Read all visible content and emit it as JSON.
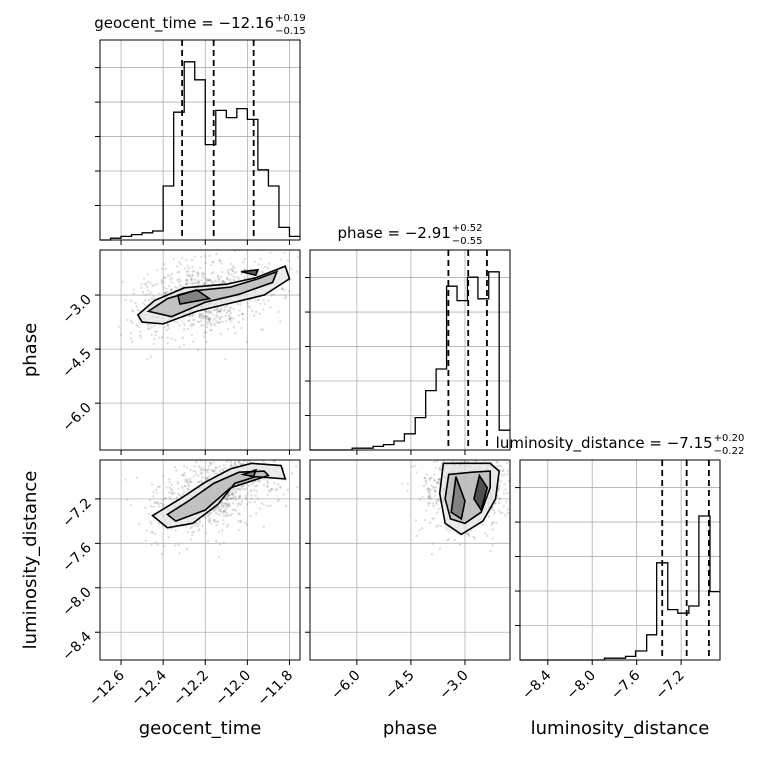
{
  "chart_data": {
    "type": "corner",
    "parameters": [
      "geocent_time",
      "phase",
      "luminosity_distance"
    ],
    "axis_labels": [
      "geocent_time",
      "phase",
      "luminosity_distance"
    ],
    "ranges": [
      [
        -12.7,
        -11.75
      ],
      [
        -7.3,
        -1.75
      ],
      [
        -8.65,
        -6.85
      ]
    ],
    "ticks": [
      {
        "values": [
          -12.6,
          -12.4,
          -12.2,
          -12.0,
          -11.8
        ],
        "labels": [
          "−12.6",
          "−12.4",
          "−12.2",
          "−12.0",
          "−11.8"
        ]
      },
      {
        "values": [
          -6.0,
          -4.5,
          -3.0
        ],
        "labels": [
          "−6.0",
          "−4.5",
          "−3.0"
        ]
      },
      {
        "values": [
          -8.4,
          -8.0,
          -7.6,
          -7.2
        ],
        "labels": [
          "−8.4",
          "−8.0",
          "−7.6",
          "−7.2"
        ]
      }
    ],
    "titles": [
      {
        "prefix": "geocent_time = −12.16",
        "sup": "+0.19",
        "sub": "−0.15"
      },
      {
        "prefix": "phase = −2.91",
        "sup": "+0.52",
        "sub": "−0.55"
      },
      {
        "prefix": "luminosity_distance = −7.15",
        "sup": "+0.20",
        "sub": "−0.22"
      }
    ],
    "medians": [
      -12.16,
      -2.91,
      -7.15
    ],
    "quantiles": [
      [
        -12.31,
        -12.16,
        -11.97
      ],
      [
        -3.46,
        -2.91,
        -2.39
      ],
      [
        -7.37,
        -7.15,
        -6.95
      ]
    ],
    "histograms": [
      {
        "edges": [
          -12.7,
          -12.65,
          -12.6,
          -12.55,
          -12.5,
          -12.45,
          -12.4,
          -12.35,
          -12.3,
          -12.25,
          -12.2,
          -12.15,
          -12.1,
          -12.05,
          -12.0,
          -11.95,
          -11.9,
          -11.85,
          -11.8,
          -11.75
        ],
        "counts": [
          0.0,
          0.01,
          0.02,
          0.03,
          0.04,
          0.05,
          0.3,
          0.71,
          0.99,
          0.89,
          0.53,
          0.72,
          0.68,
          0.73,
          0.67,
          0.39,
          0.3,
          0.07,
          0.02
        ]
      },
      {
        "edges": [
          -7.3,
          -7.01,
          -6.72,
          -6.43,
          -6.13,
          -5.84,
          -5.55,
          -5.26,
          -4.97,
          -4.68,
          -4.38,
          -4.09,
          -3.8,
          -3.51,
          -3.22,
          -2.93,
          -2.64,
          -2.34,
          -2.05,
          -1.75
        ],
        "counts": [
          0.0,
          0.0,
          0.0,
          0.0,
          0.01,
          0.01,
          0.02,
          0.03,
          0.05,
          0.09,
          0.18,
          0.33,
          0.45,
          0.91,
          0.83,
          0.96,
          0.84,
          0.99,
          0.11
        ]
      },
      {
        "edges": [
          -8.65,
          -8.56,
          -8.46,
          -8.37,
          -8.27,
          -8.18,
          -8.08,
          -7.99,
          -7.89,
          -7.8,
          -7.7,
          -7.61,
          -7.51,
          -7.42,
          -7.32,
          -7.23,
          -7.13,
          -7.04,
          -6.94,
          -6.85
        ],
        "counts": [
          0.0,
          0.0,
          0.0,
          0.0,
          0.0,
          0.0,
          0.0,
          0.0,
          0.01,
          0.01,
          0.02,
          0.05,
          0.14,
          0.54,
          0.28,
          0.26,
          0.3,
          0.8,
          0.38
        ]
      }
    ],
    "pairs": [
      {
        "x": "geocent_time",
        "y": "phase",
        "contour_levels": [
          [
            [
              -12.52,
              -3.55
            ],
            [
              -12.44,
              -3.15
            ],
            [
              -12.3,
              -2.8
            ],
            [
              -12.1,
              -2.7
            ],
            [
              -11.96,
              -2.52
            ],
            [
              -11.82,
              -2.2
            ],
            [
              -11.8,
              -2.55
            ],
            [
              -11.92,
              -3.0
            ],
            [
              -12.12,
              -3.28
            ],
            [
              -12.24,
              -3.45
            ],
            [
              -12.4,
              -3.8
            ],
            [
              -12.5,
              -3.75
            ],
            [
              -12.52,
              -3.55
            ]
          ],
          [
            [
              -12.47,
              -3.45
            ],
            [
              -12.38,
              -3.1
            ],
            [
              -12.25,
              -2.88
            ],
            [
              -12.08,
              -2.78
            ],
            [
              -11.95,
              -2.55
            ],
            [
              -11.86,
              -2.35
            ],
            [
              -11.88,
              -2.65
            ],
            [
              -12.04,
              -2.98
            ],
            [
              -12.2,
              -3.2
            ],
            [
              -12.36,
              -3.6
            ],
            [
              -12.47,
              -3.45
            ]
          ],
          [
            [
              -12.33,
              -3.0
            ],
            [
              -12.24,
              -2.86
            ],
            [
              -12.18,
              -3.1
            ],
            [
              -12.32,
              -3.25
            ],
            [
              -12.33,
              -3.0
            ]
          ],
          [
            [
              -12.03,
              -2.35
            ],
            [
              -11.95,
              -2.3
            ],
            [
              -11.96,
              -2.45
            ],
            [
              -12.03,
              -2.35
            ]
          ]
        ]
      },
      {
        "x": "geocent_time",
        "y": "luminosity_distance",
        "contour_levels": [
          [
            [
              -12.45,
              -7.35
            ],
            [
              -12.32,
              -7.2
            ],
            [
              -12.2,
              -7.05
            ],
            [
              -12.08,
              -6.93
            ],
            [
              -11.98,
              -6.88
            ],
            [
              -11.84,
              -6.9
            ],
            [
              -11.82,
              -7.02
            ],
            [
              -11.96,
              -7.0
            ],
            [
              -12.06,
              -7.06
            ],
            [
              -12.14,
              -7.25
            ],
            [
              -12.26,
              -7.42
            ],
            [
              -12.38,
              -7.46
            ],
            [
              -12.45,
              -7.35
            ]
          ],
          [
            [
              -12.38,
              -7.34
            ],
            [
              -12.28,
              -7.22
            ],
            [
              -12.16,
              -7.06
            ],
            [
              -12.04,
              -6.96
            ],
            [
              -11.92,
              -6.95
            ],
            [
              -11.9,
              -6.99
            ],
            [
              -12.08,
              -7.1
            ],
            [
              -12.2,
              -7.3
            ],
            [
              -12.34,
              -7.4
            ],
            [
              -12.38,
              -7.34
            ]
          ],
          [
            [
              -12.02,
              -6.98
            ],
            [
              -11.96,
              -6.94
            ],
            [
              -11.97,
              -7.0
            ],
            [
              -12.02,
              -6.98
            ]
          ]
        ]
      },
      {
        "x": "phase",
        "y": "luminosity_distance",
        "contour_levels": [
          [
            [
              -3.6,
              -6.88
            ],
            [
              -3.7,
              -7.15
            ],
            [
              -3.55,
              -7.42
            ],
            [
              -3.1,
              -7.52
            ],
            [
              -2.5,
              -7.4
            ],
            [
              -2.15,
              -7.2
            ],
            [
              -2.05,
              -6.95
            ],
            [
              -2.3,
              -6.88
            ],
            [
              -2.8,
              -6.88
            ],
            [
              -3.3,
              -6.88
            ],
            [
              -3.6,
              -6.88
            ]
          ],
          [
            [
              -3.45,
              -6.98
            ],
            [
              -3.55,
              -7.2
            ],
            [
              -3.4,
              -7.38
            ],
            [
              -3.0,
              -7.42
            ],
            [
              -2.55,
              -7.32
            ],
            [
              -2.3,
              -7.1
            ],
            [
              -2.3,
              -6.95
            ],
            [
              -2.8,
              -6.96
            ],
            [
              -3.45,
              -6.98
            ]
          ],
          [
            [
              -3.25,
              -7.0
            ],
            [
              -3.38,
              -7.32
            ],
            [
              -3.1,
              -7.38
            ],
            [
              -3.0,
              -7.22
            ],
            [
              -3.25,
              -7.0
            ]
          ],
          [
            [
              -2.6,
              -6.99
            ],
            [
              -2.75,
              -7.2
            ],
            [
              -2.55,
              -7.3
            ],
            [
              -2.38,
              -7.1
            ],
            [
              -2.6,
              -6.99
            ]
          ]
        ]
      }
    ],
    "grid": true
  }
}
